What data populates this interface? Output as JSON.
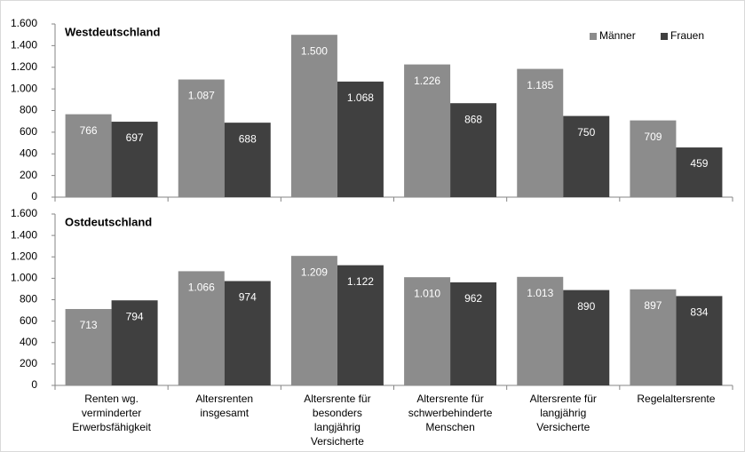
{
  "chart_data": [
    {
      "type": "bar",
      "title": "Westdeutschland",
      "series": [
        {
          "name": "Männer",
          "color": "#8c8c8c",
          "values": [
            766,
            1087,
            1500,
            1226,
            1185,
            709
          ],
          "value_labels": [
            "766",
            "1.087",
            "1.500",
            "1.226",
            "1.185",
            "709"
          ]
        },
        {
          "name": "Frauen",
          "color": "#404040",
          "values": [
            697,
            688,
            1068,
            868,
            750,
            459
          ],
          "value_labels": [
            "697",
            "688",
            "1.068",
            "868",
            "750",
            "459"
          ]
        }
      ],
      "ylim": [
        0,
        1600
      ],
      "yticks": [
        0,
        200,
        400,
        600,
        800,
        {
          "value": 1000,
          "label": "1.000"
        },
        {
          "value": 1200,
          "label": "1.200"
        },
        {
          "value": 1400,
          "label": "1.400"
        },
        {
          "value": 1600,
          "label": "1.600"
        }
      ],
      "legend": "top-right"
    },
    {
      "type": "bar",
      "title": "Ostdeutschland",
      "categories": [
        [
          "Renten wg.",
          "verminderter",
          "Erwerbsfähigkeit"
        ],
        [
          "Altersrenten",
          "insgesamt"
        ],
        [
          "Altersrente für",
          "besonders",
          "langjährig",
          "Versicherte"
        ],
        [
          "Altersrente für",
          "schwerbehinderte",
          "Menschen"
        ],
        [
          "Altersrente für",
          "langjährig",
          "Versicherte"
        ],
        [
          "Regelaltersrente"
        ]
      ],
      "series": [
        {
          "color": "#8c8c8c",
          "values": [
            713,
            1066,
            1209,
            1010,
            1013,
            897
          ],
          "value_labels": [
            "713",
            "1.066",
            "1.209",
            "1.010",
            "1.013",
            "897"
          ]
        },
        {
          "color": "#404040",
          "values": [
            794,
            974,
            1122,
            962,
            890,
            834
          ],
          "value_labels": [
            "794",
            "974",
            "1.122",
            "962",
            "890",
            "834"
          ]
        }
      ],
      "ylim": [
        0,
        1600
      ],
      "yticks": [
        0,
        200,
        400,
        600,
        800,
        {
          "value": 1000,
          "label": "1.000"
        },
        {
          "value": 1200,
          "label": "1.200"
        },
        {
          "value": 1400,
          "label": "1.400"
        },
        {
          "value": 1600,
          "label": "1.600"
        }
      ]
    }
  ]
}
